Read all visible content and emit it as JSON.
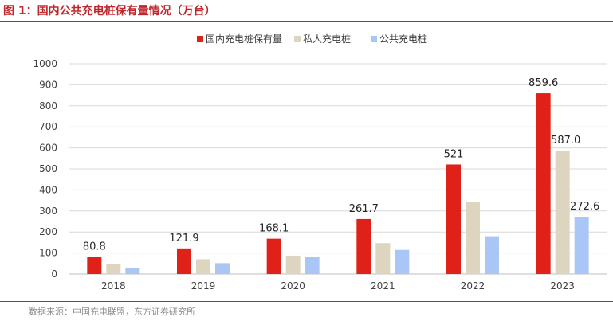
{
  "figure": {
    "title": "图 1：国内公共充电桩保有量情况（万台）",
    "source": "数据来源：中国充电联盟，东方证券研究所"
  },
  "chart_data": {
    "type": "bar",
    "title": "",
    "xlabel": "",
    "ylabel": "",
    "categories": [
      "2018",
      "2019",
      "2020",
      "2021",
      "2022",
      "2023"
    ],
    "ylim": [
      0,
      1000
    ],
    "yticks": [
      0,
      100,
      200,
      300,
      400,
      500,
      600,
      700,
      800,
      900,
      1000
    ],
    "grid": true,
    "legend_position": "top",
    "series": [
      {
        "name": "国内充电桩保有量",
        "color": "#e0211a",
        "values": [
          80.8,
          121.9,
          168.1,
          261.7,
          521,
          859.6
        ],
        "labels": [
          "80.8",
          "121.9",
          "168.1",
          "261.7",
          "521",
          "859.6"
        ]
      },
      {
        "name": "私人充电桩",
        "color": "#ddd5bf",
        "values": [
          47.7,
          70.3,
          87.4,
          147.0,
          341.2,
          587.0
        ],
        "labels": [
          "",
          "",
          "",
          "",
          "",
          "587.0"
        ]
      },
      {
        "name": "公共充电桩",
        "color": "#a9c6f7",
        "values": [
          30.0,
          51.6,
          80.7,
          114.7,
          179.7,
          272.6
        ],
        "labels": [
          "",
          "",
          "",
          "",
          "",
          "272.6"
        ]
      }
    ]
  }
}
